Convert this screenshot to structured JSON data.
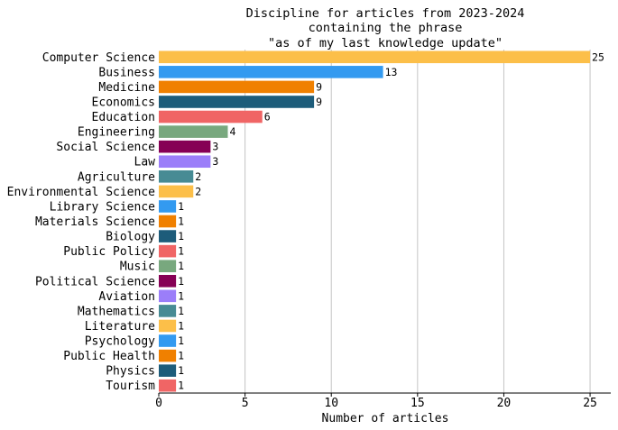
{
  "chart_data": {
    "type": "bar",
    "orientation": "horizontal",
    "title_lines": [
      "Discipline for articles from 2023-2024",
      "containing the phrase",
      "\"as of my last knowledge update\""
    ],
    "xlabel": "Number of articles",
    "ylabel": "",
    "xlim": [
      0,
      26.2
    ],
    "xticks": [
      0,
      5,
      10,
      15,
      20,
      25
    ],
    "grid": "vertical",
    "categories": [
      "Computer Science",
      "Business",
      "Medicine",
      "Economics",
      "Education",
      "Engineering",
      "Social Science",
      "Law",
      "Agriculture",
      "Environmental Science",
      "Library Science",
      "Materials Science",
      "Biology",
      "Public Policy",
      "Music",
      "Political Science",
      "Aviation",
      "Mathematics",
      "Literature",
      "Psychology",
      "Public Health",
      "Physics",
      "Tourism"
    ],
    "values": [
      25,
      13,
      9,
      9,
      6,
      4,
      3,
      3,
      2,
      2,
      1,
      1,
      1,
      1,
      1,
      1,
      1,
      1,
      1,
      1,
      1,
      1,
      1
    ],
    "colors": [
      "#fcbf49",
      "#339af0",
      "#f08000",
      "#1d5c7a",
      "#f06565",
      "#78a87e",
      "#860055",
      "#9b7ef9",
      "#478b94",
      "#fcbf49",
      "#339af0",
      "#f08000",
      "#1d5c7a",
      "#f06565",
      "#78a87e",
      "#860055",
      "#9b7ef9",
      "#478b94",
      "#fcbf49",
      "#339af0",
      "#f08000",
      "#1d5c7a",
      "#f06565"
    ]
  }
}
